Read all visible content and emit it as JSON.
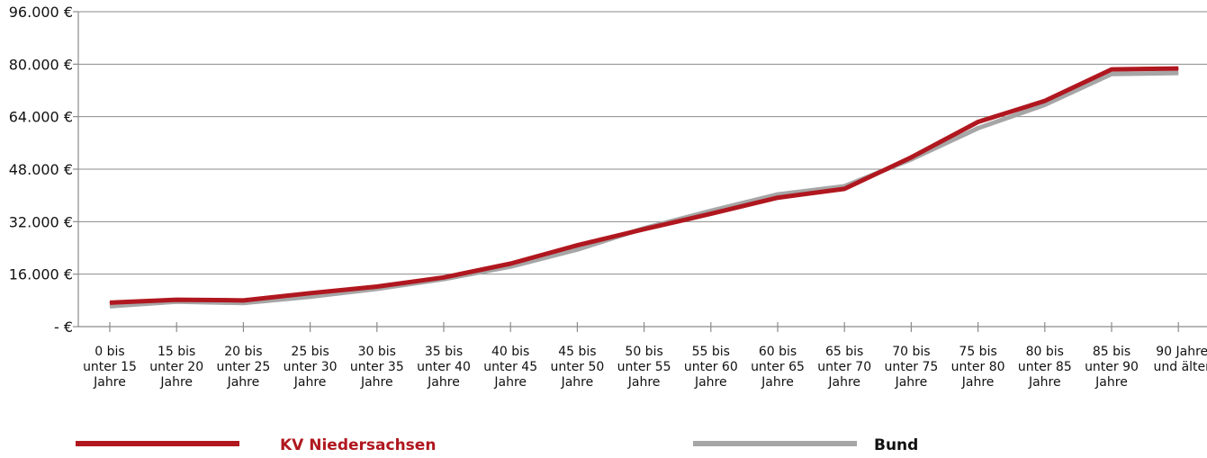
{
  "chart_data": {
    "type": "line",
    "categories": [
      [
        "0 bis",
        "unter 15",
        "Jahre"
      ],
      [
        "15 bis",
        "unter 20",
        "Jahre"
      ],
      [
        "20 bis",
        "unter 25",
        "Jahre"
      ],
      [
        "25 bis",
        "unter 30",
        "Jahre"
      ],
      [
        "30 bis",
        "unter 35",
        "Jahre"
      ],
      [
        "35 bis",
        "unter 40",
        "Jahre"
      ],
      [
        "40 bis",
        "unter 45",
        "Jahre"
      ],
      [
        "45 bis",
        "unter 50",
        "Jahre"
      ],
      [
        "50 bis",
        "unter 55",
        "Jahre"
      ],
      [
        "55 bis",
        "unter 60",
        "Jahre"
      ],
      [
        "60 bis",
        "unter 65",
        "Jahre"
      ],
      [
        "65 bis",
        "unter 70",
        "Jahre"
      ],
      [
        "70 bis",
        "unter 75",
        "Jahre"
      ],
      [
        "75 bis",
        "unter 80",
        "Jahre"
      ],
      [
        "80 bis",
        "unter 85",
        "Jahre"
      ],
      [
        "85 bis",
        "unter 90",
        "Jahre"
      ],
      [
        "90 Jahre",
        "und älter"
      ]
    ],
    "y_ticks": [
      {
        "value": 0,
        "label": "- €"
      },
      {
        "value": 16000,
        "label": "16.000 €"
      },
      {
        "value": 32000,
        "label": "32.000 €"
      },
      {
        "value": 48000,
        "label": "48.000 €"
      },
      {
        "value": 64000,
        "label": "64.000 €"
      },
      {
        "value": 80000,
        "label": "80.000 €"
      },
      {
        "value": 96000,
        "label": "96.000 €"
      }
    ],
    "ylim": [
      0,
      96000
    ],
    "grid": true,
    "legend_position": "bottom",
    "series": [
      {
        "name": "Bund",
        "color": "#a6a6a6",
        "values": [
          6200,
          7600,
          7200,
          9100,
          11500,
          14500,
          18300,
          23500,
          30000,
          35300,
          40300,
          42800,
          51000,
          60500,
          67600,
          77000,
          77300
        ]
      },
      {
        "name": "KV Niedersachsen",
        "color": "#b0171f",
        "values": [
          7300,
          8200,
          8000,
          10200,
          12200,
          15000,
          19200,
          24800,
          29700,
          34400,
          39300,
          42000,
          51600,
          62400,
          68800,
          78400,
          78700
        ]
      }
    ]
  }
}
